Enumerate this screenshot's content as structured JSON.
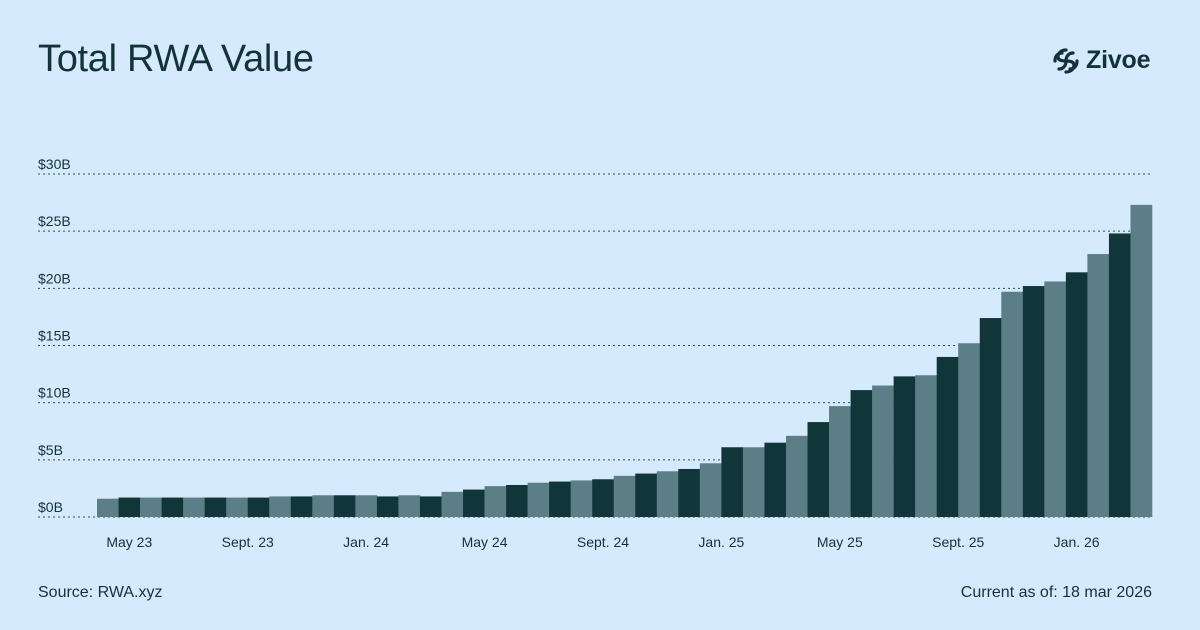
{
  "title": "Total RWA Value",
  "brand": {
    "name": "Zivoe",
    "icon": "zivoe-logo-icon"
  },
  "footer": {
    "source": "Source: RWA.xyz",
    "as_of": "Current as of: 18 mar 2026"
  },
  "colors": {
    "background": "#d6eafd",
    "text": "#123438",
    "bar_dark": "#113639",
    "bar_light": "#5c7f87",
    "grid": "#123438"
  },
  "chart_data": {
    "type": "bar",
    "title": "Total RWA Value",
    "xlabel": "",
    "ylabel": "",
    "ylim": [
      0,
      30
    ],
    "grid": true,
    "grid_style": "dotted",
    "y_ticks": [
      {
        "value": 0,
        "label": "$0B"
      },
      {
        "value": 5,
        "label": "$5B"
      },
      {
        "value": 10,
        "label": "$10B"
      },
      {
        "value": 15,
        "label": "$15B"
      },
      {
        "value": 20,
        "label": "$20B"
      },
      {
        "value": 25,
        "label": "$25B"
      },
      {
        "value": 30,
        "label": "$30B"
      }
    ],
    "x_ticks": [
      {
        "index": 1,
        "label": "May 23"
      },
      {
        "index": 6.5,
        "label": "Sept. 23"
      },
      {
        "index": 12,
        "label": "Jan. 24"
      },
      {
        "index": 17.5,
        "label": "May 24"
      },
      {
        "index": 23,
        "label": "Sept. 24"
      },
      {
        "index": 28.5,
        "label": "Jan. 25"
      },
      {
        "index": 34,
        "label": "May 25"
      },
      {
        "index": 39.5,
        "label": "Sept. 25"
      },
      {
        "index": 45,
        "label": "Jan. 26"
      }
    ],
    "values": [
      1.6,
      1.7,
      1.7,
      1.7,
      1.7,
      1.7,
      1.7,
      1.7,
      1.8,
      1.8,
      1.9,
      1.9,
      1.9,
      1.8,
      1.9,
      1.8,
      2.2,
      2.4,
      2.7,
      2.8,
      3.0,
      3.1,
      3.2,
      3.3,
      3.6,
      3.8,
      4.0,
      4.2,
      4.7,
      6.1,
      6.1,
      6.5,
      7.1,
      8.3,
      9.7,
      11.1,
      11.5,
      12.3,
      12.4,
      14.0,
      15.2,
      17.4,
      19.7,
      20.2,
      20.6,
      21.4,
      23.0,
      24.8,
      27.3
    ]
  }
}
